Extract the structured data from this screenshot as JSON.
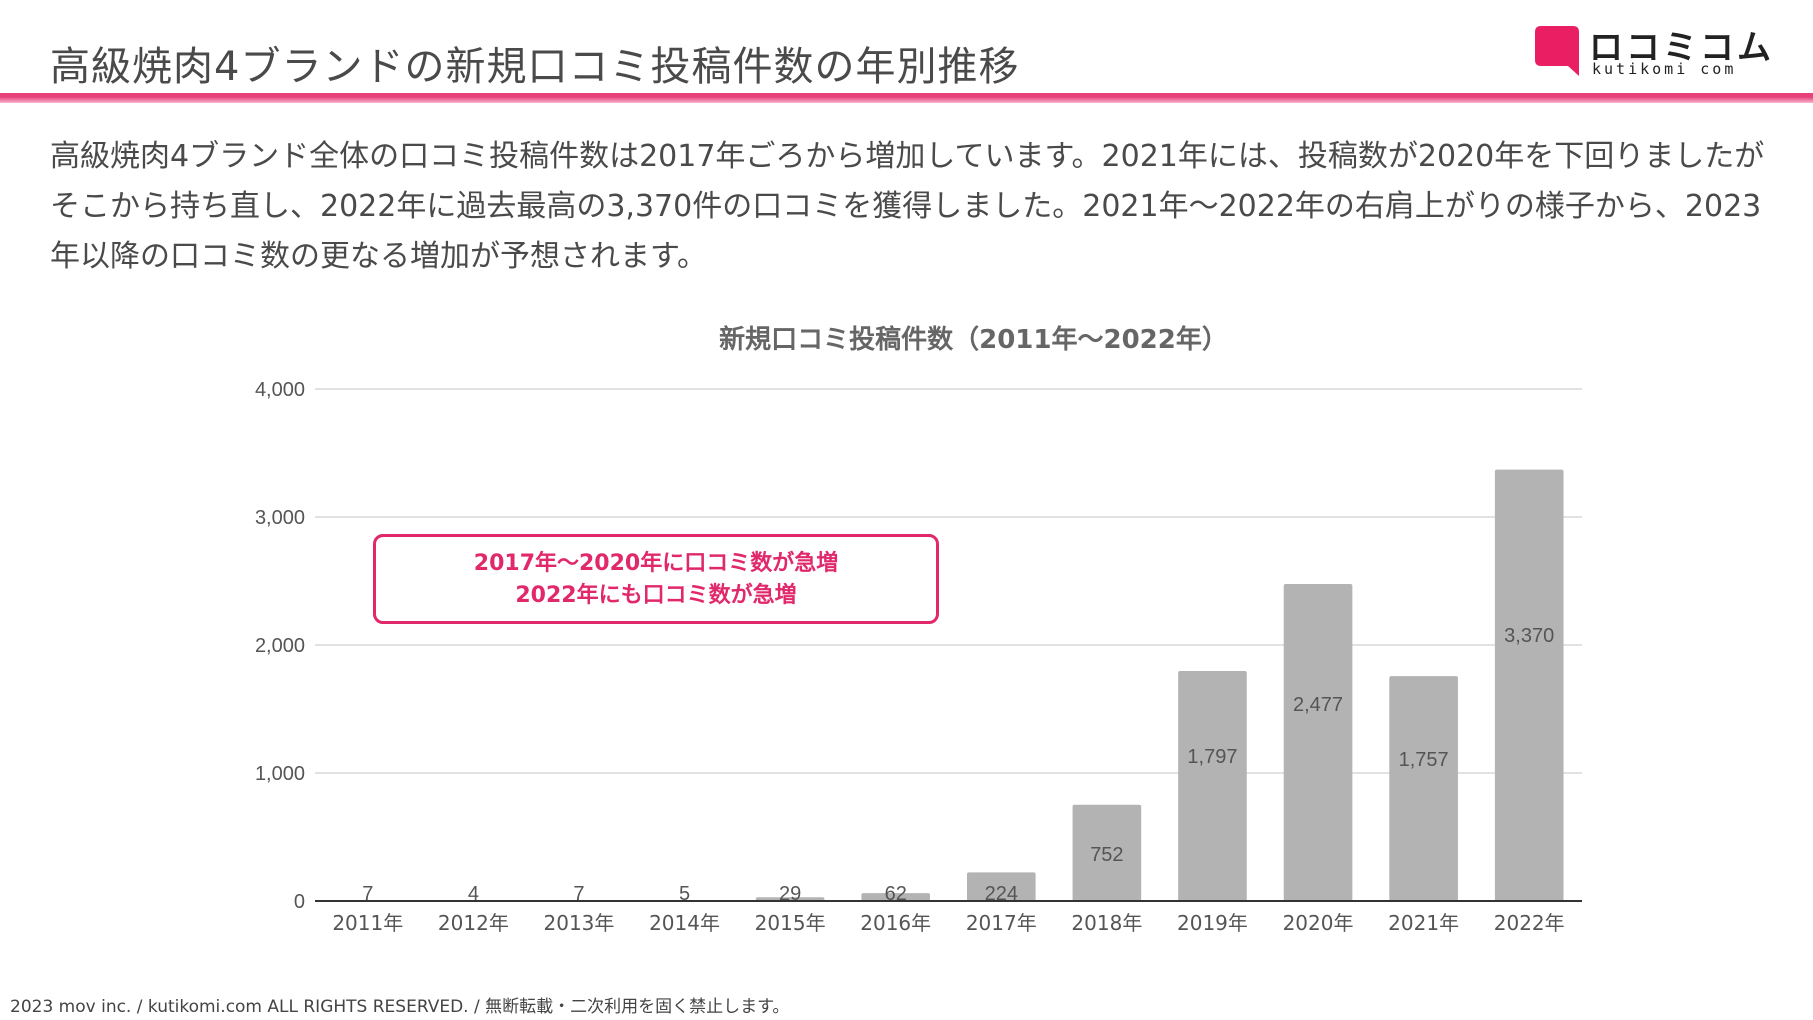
{
  "header": {
    "title": "高級焼肉4ブランドの新規口コミ投稿件数の年別推移",
    "accent_color": "#e8407a"
  },
  "logo": {
    "name": "ロコミコム",
    "domain": "kutikomi com",
    "color": "#e91e63"
  },
  "summary": {
    "paragraph": "高級焼肉4ブランド全体の口コミ投稿件数は2017年ごろから増加しています。2021年には、投稿数が2020年を下回りましたがそこから持ち直し、2022年に過去最高の3,370件の口コミを獲得しました。2021年〜2022年の右肩上がりの様子から、2023年以降の口コミ数の更なる増加が予想されます。"
  },
  "callout": {
    "line1": "2017年〜2020年に口コミ数が急増",
    "line2": "2022年にも口コミ数が急増",
    "color": "#e0286b"
  },
  "chart_data": {
    "type": "bar",
    "title": "新規口コミ投稿件数（2011年〜2022年）",
    "categories": [
      "2011年",
      "2012年",
      "2013年",
      "2014年",
      "2015年",
      "2016年",
      "2017年",
      "2018年",
      "2019年",
      "2020年",
      "2021年",
      "2022年"
    ],
    "values": [
      7,
      4,
      7,
      5,
      29,
      62,
      224,
      752,
      1797,
      2477,
      1757,
      3370
    ],
    "value_labels": [
      "7",
      "4",
      "7",
      "5",
      "29",
      "62",
      "224",
      "752",
      "1,797",
      "2,477",
      "1,757",
      "3,370"
    ],
    "ylim": [
      0,
      4000
    ],
    "yticks": [
      0,
      1000,
      2000,
      3000,
      4000
    ],
    "ytick_labels": [
      "0",
      "1,000",
      "2,000",
      "3,000",
      "4,000"
    ],
    "xlabel": "",
    "ylabel": "",
    "grid": true,
    "legend": "none",
    "bar_color": "#b3b3b3"
  },
  "footer": {
    "copyright": "2023 mov inc. / kutikomi.com ALL RIGHTS RESERVED. / 無断転載・二次利用を固く禁止します。"
  }
}
